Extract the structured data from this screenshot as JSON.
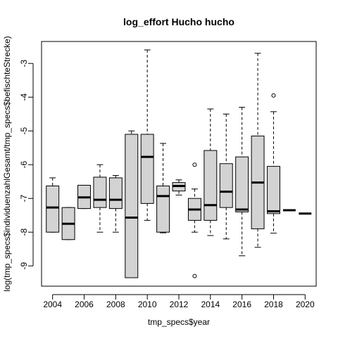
{
  "chart_data": {
    "type": "boxplot",
    "title": "log_effort Hucho hucho",
    "xlabel": "tmp_specs$year",
    "ylabel": "log(tmp_specs$individuenzahlGesamt/tmp_specs$befischteStrecke)",
    "box_fill": "#d3d3d3",
    "ylim": [
      -9.6,
      -2.35
    ],
    "y_ticks": [
      -9,
      -8,
      -7,
      -6,
      -5,
      -4,
      -3
    ],
    "y_tick_labels": [
      "-9",
      "-8",
      "-7",
      "-6",
      "-5",
      "-4",
      "-3"
    ],
    "x_ticks": [
      "2004",
      "2006",
      "2008",
      "2010",
      "2012",
      "2014",
      "2016",
      "2018",
      "2020"
    ],
    "grid": false,
    "legend": "none",
    "categories": [
      "2004",
      "2005",
      "2006",
      "2007",
      "2008",
      "2009",
      "2010",
      "2011",
      "2012",
      "2013",
      "2014",
      "2015",
      "2016",
      "2017",
      "2018",
      "2019",
      "2020"
    ],
    "boxes": [
      {
        "year": "2004",
        "whisker_low": -8.0,
        "q1": -8.0,
        "median": -7.27,
        "q3": -6.63,
        "whisker_high": -6.39,
        "outliers": []
      },
      {
        "year": "2005",
        "whisker_low": -8.22,
        "q1": -8.22,
        "median": -7.75,
        "q3": -7.27,
        "whisker_high": -7.27,
        "outliers": []
      },
      {
        "year": "2006",
        "whisker_low": -7.3,
        "q1": -7.3,
        "median": -6.97,
        "q3": -6.61,
        "whisker_high": -6.61,
        "outliers": []
      },
      {
        "year": "2007",
        "whisker_low": -8.0,
        "q1": -7.27,
        "median": -7.04,
        "q3": -6.37,
        "whisker_high": -6.0,
        "outliers": []
      },
      {
        "year": "2008",
        "whisker_low": -8.0,
        "q1": -7.3,
        "median": -7.04,
        "q3": -6.39,
        "whisker_high": -6.32,
        "outliers": []
      },
      {
        "year": "2009",
        "whisker_low": -9.35,
        "q1": -9.35,
        "median": -7.57,
        "q3": -5.1,
        "whisker_high": -5.0,
        "outliers": []
      },
      {
        "year": "2010",
        "whisker_low": -7.65,
        "q1": -7.15,
        "median": -5.77,
        "q3": -5.1,
        "whisker_high": -2.6,
        "outliers": []
      },
      {
        "year": "2011",
        "whisker_low": -8.02,
        "q1": -8.0,
        "median": -6.93,
        "q3": -6.63,
        "whisker_high": -5.37,
        "outliers": []
      },
      {
        "year": "2012",
        "whisker_low": -6.9,
        "q1": -6.78,
        "median": -6.63,
        "q3": -6.53,
        "whisker_high": -6.45,
        "outliers": []
      },
      {
        "year": "2013",
        "whisker_low": -8.0,
        "q1": -7.65,
        "median": -7.33,
        "q3": -7.0,
        "whisker_high": -6.72,
        "outliers": [
          -6.0,
          -9.3
        ]
      },
      {
        "year": "2014",
        "whisker_low": -8.1,
        "q1": -7.65,
        "median": -7.2,
        "q3": -5.58,
        "whisker_high": -4.35,
        "outliers": []
      },
      {
        "year": "2015",
        "whisker_low": -8.2,
        "q1": -7.27,
        "median": -6.8,
        "q3": -5.97,
        "whisker_high": -4.5,
        "outliers": []
      },
      {
        "year": "2016",
        "whisker_low": -8.7,
        "q1": -7.4,
        "median": -7.33,
        "q3": -5.77,
        "whisker_high": -4.3,
        "outliers": []
      },
      {
        "year": "2017",
        "whisker_low": -8.45,
        "q1": -7.9,
        "median": -6.53,
        "q3": -5.15,
        "whisker_high": -2.7,
        "outliers": []
      },
      {
        "year": "2018",
        "whisker_low": -8.03,
        "q1": -7.45,
        "median": -7.38,
        "q3": -6.05,
        "whisker_high": -4.43,
        "outliers": [
          -3.95
        ]
      },
      {
        "year": "2019",
        "whisker_low": -7.35,
        "q1": -7.35,
        "median": -7.35,
        "q3": -7.35,
        "whisker_high": -7.35,
        "outliers": []
      },
      {
        "year": "2020",
        "whisker_low": -7.45,
        "q1": -7.45,
        "median": -7.45,
        "q3": -7.45,
        "whisker_high": -7.45,
        "outliers": []
      }
    ]
  }
}
